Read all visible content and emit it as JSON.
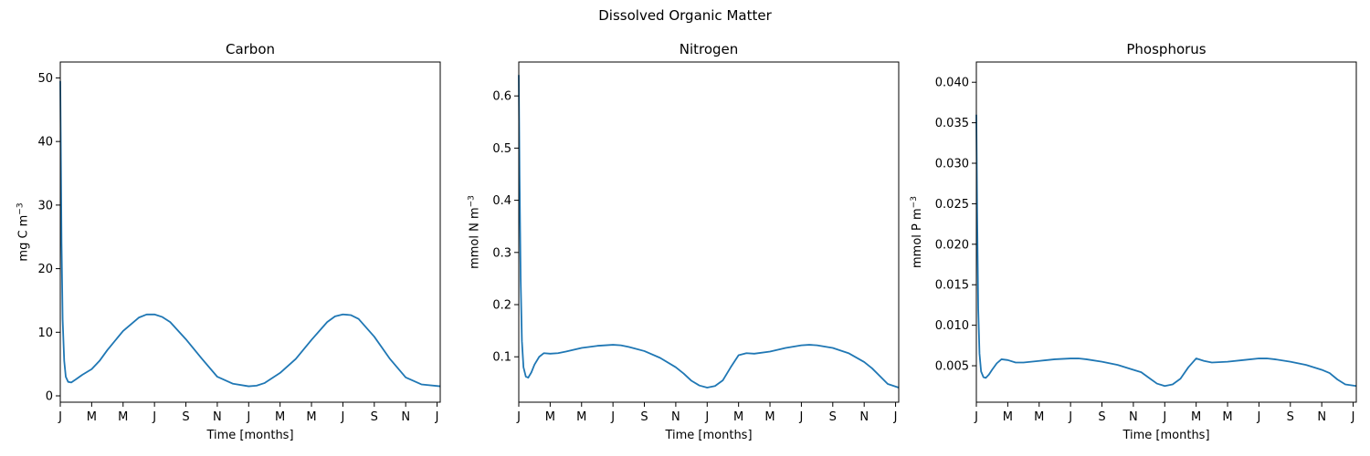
{
  "figure": {
    "suptitle": "Dissolved Organic Matter",
    "line_color": "#1f77b4"
  },
  "chart_data": [
    {
      "type": "line",
      "title": "Carbon",
      "xlabel": "Time [months]",
      "ylabel_main": "mg C m",
      "ylabel_sup": "−3",
      "x_tick_labels": [
        "J",
        "M",
        "M",
        "J",
        "S",
        "N",
        "J",
        "M",
        "M",
        "J",
        "S",
        "N",
        "J"
      ],
      "x_tick_values": [
        0,
        2,
        4,
        6,
        8,
        10,
        12,
        14,
        16,
        18,
        20,
        22,
        24
      ],
      "xlim": [
        0,
        24.2
      ],
      "ylim": [
        -1,
        52.5
      ],
      "y_ticks": [
        0,
        10,
        20,
        30,
        40,
        50
      ],
      "y_tick_labels": [
        "0",
        "10",
        "20",
        "30",
        "40",
        "50"
      ],
      "series": [
        {
          "x": [
            0,
            0.03,
            0.08,
            0.15,
            0.25,
            0.35,
            0.5,
            0.7,
            1.0,
            1.4,
            2.0,
            2.5,
            3.0,
            4.0,
            5.0,
            5.5,
            6.0,
            6.5,
            7.0,
            8.0,
            9.0,
            10.0,
            11.0,
            12.0,
            12.5,
            13.0,
            13.5,
            14.0,
            15.0,
            16.0,
            17.0,
            17.5,
            18.0,
            18.5,
            19.0,
            20.0,
            21.0,
            22.0,
            23.0,
            24.2
          ],
          "y": [
            49.5,
            40,
            24,
            12,
            5.5,
            3.0,
            2.2,
            2.1,
            2.6,
            3.3,
            4.2,
            5.5,
            7.2,
            10.2,
            12.3,
            12.8,
            12.8,
            12.4,
            11.6,
            8.9,
            5.9,
            3.0,
            1.9,
            1.5,
            1.6,
            2.0,
            2.8,
            3.6,
            5.8,
            8.8,
            11.6,
            12.5,
            12.8,
            12.7,
            12.1,
            9.3,
            5.8,
            2.9,
            1.8,
            1.5
          ]
        }
      ]
    },
    {
      "type": "line",
      "title": "Nitrogen",
      "xlabel": "Time [months]",
      "ylabel_main": "mmol N m",
      "ylabel_sup": "−3",
      "x_tick_labels": [
        "J",
        "M",
        "M",
        "J",
        "S",
        "N",
        "J",
        "M",
        "M",
        "J",
        "S",
        "N",
        "J"
      ],
      "x_tick_values": [
        0,
        2,
        4,
        6,
        8,
        10,
        12,
        14,
        16,
        18,
        20,
        22,
        24
      ],
      "xlim": [
        0,
        24.2
      ],
      "ylim": [
        0.013,
        0.665
      ],
      "y_ticks": [
        0.1,
        0.2,
        0.3,
        0.4,
        0.5,
        0.6
      ],
      "y_tick_labels": [
        "0.1",
        "0.2",
        "0.3",
        "0.4",
        "0.5",
        "0.6"
      ],
      "series": [
        {
          "x": [
            0,
            0.05,
            0.12,
            0.2,
            0.3,
            0.45,
            0.6,
            0.8,
            1.0,
            1.3,
            1.6,
            2.0,
            2.5,
            3.0,
            4.0,
            5.0,
            6.0,
            6.5,
            7.0,
            8.0,
            9.0,
            10.0,
            10.5,
            11.0,
            11.5,
            12.0,
            12.5,
            13.0,
            13.5,
            14.0,
            14.5,
            15.0,
            16.0,
            17.0,
            18.0,
            18.5,
            19.0,
            20.0,
            21.0,
            22.0,
            22.5,
            23.0,
            23.5,
            24.2
          ],
          "y": [
            0.64,
            0.45,
            0.25,
            0.13,
            0.08,
            0.062,
            0.06,
            0.07,
            0.085,
            0.1,
            0.107,
            0.106,
            0.107,
            0.11,
            0.117,
            0.121,
            0.123,
            0.122,
            0.119,
            0.111,
            0.098,
            0.08,
            0.068,
            0.054,
            0.045,
            0.041,
            0.044,
            0.055,
            0.08,
            0.103,
            0.107,
            0.106,
            0.11,
            0.117,
            0.122,
            0.123,
            0.122,
            0.117,
            0.107,
            0.09,
            0.078,
            0.063,
            0.048,
            0.041
          ]
        }
      ]
    },
    {
      "type": "line",
      "title": "Phosphorus",
      "xlabel": "Time [months]",
      "ylabel_main": "mmol P m",
      "ylabel_sup": "−3",
      "x_tick_labels": [
        "J",
        "M",
        "M",
        "J",
        "S",
        "N",
        "J",
        "M",
        "M",
        "J",
        "S",
        "N",
        "J"
      ],
      "x_tick_values": [
        0,
        2,
        4,
        6,
        8,
        10,
        12,
        14,
        16,
        18,
        20,
        22,
        24
      ],
      "xlim": [
        0,
        24.2
      ],
      "ylim": [
        0.0005,
        0.0425
      ],
      "y_ticks": [
        0.005,
        0.01,
        0.015,
        0.02,
        0.025,
        0.03,
        0.035,
        0.04
      ],
      "y_tick_labels": [
        "0.005",
        "0.010",
        "0.015",
        "0.020",
        "0.025",
        "0.030",
        "0.035",
        "0.040"
      ],
      "series": [
        {
          "x": [
            0,
            0.05,
            0.12,
            0.2,
            0.3,
            0.45,
            0.6,
            0.8,
            1.0,
            1.3,
            1.6,
            2.0,
            2.5,
            3.0,
            4.0,
            5.0,
            6.0,
            6.5,
            7.0,
            8.0,
            9.0,
            10.0,
            10.5,
            11.0,
            11.5,
            12.0,
            12.5,
            13.0,
            13.5,
            14.0,
            14.5,
            15.0,
            16.0,
            17.0,
            18.0,
            18.5,
            19.0,
            20.0,
            21.0,
            22.0,
            22.5,
            23.0,
            23.5,
            24.2
          ],
          "y": [
            0.036,
            0.024,
            0.012,
            0.0065,
            0.0043,
            0.0036,
            0.0035,
            0.0039,
            0.0045,
            0.0053,
            0.0058,
            0.0057,
            0.0054,
            0.0054,
            0.0056,
            0.0058,
            0.0059,
            0.0059,
            0.0058,
            0.0055,
            0.0051,
            0.0045,
            0.0042,
            0.0035,
            0.0028,
            0.0025,
            0.0027,
            0.0034,
            0.0048,
            0.0059,
            0.0056,
            0.0054,
            0.0055,
            0.0057,
            0.0059,
            0.0059,
            0.0058,
            0.0055,
            0.0051,
            0.0045,
            0.0041,
            0.0033,
            0.0027,
            0.0025
          ]
        }
      ]
    }
  ]
}
